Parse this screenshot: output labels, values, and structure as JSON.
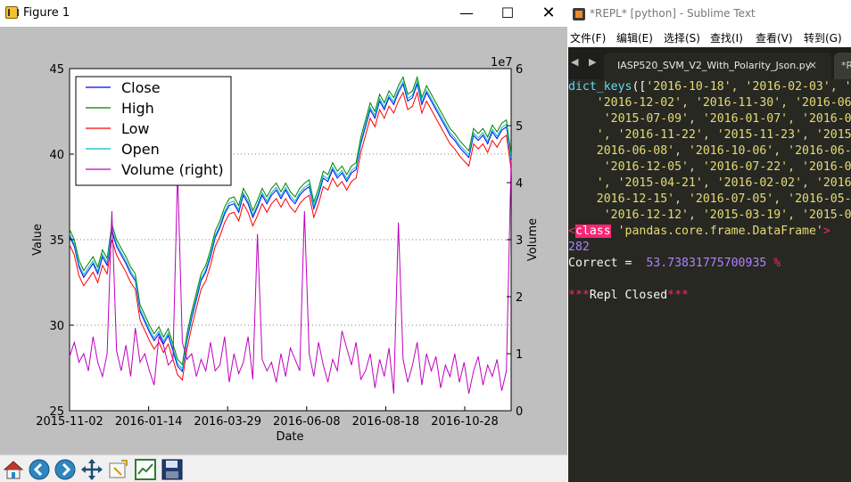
{
  "figure_window": {
    "title": "Figure 1",
    "minimize": "—",
    "maximize": "☐",
    "close": "✕",
    "toolbar": [
      "home-icon",
      "back-icon",
      "forward-icon",
      "pan-icon",
      "zoom-icon",
      "subplots-icon",
      "save-icon"
    ]
  },
  "chart_data": {
    "type": "line",
    "xlabel": "Date",
    "ylabel": "Value",
    "y2label": "Volume",
    "y2_exponent": "1e7",
    "xtick_labels": [
      "2015-11-02",
      "2016-01-14",
      "2016-03-29",
      "2016-06-08",
      "2016-08-18",
      "2016-10-28"
    ],
    "ylim": [
      25,
      45
    ],
    "y_ticks": [
      "25",
      "30",
      "35",
      "40",
      "45"
    ],
    "y2lim": [
      0,
      6
    ],
    "y2_ticks": [
      "0",
      "1",
      "2",
      "3",
      "4",
      "5",
      "6"
    ],
    "grid": "horizontal dotted",
    "legend_position": "upper left",
    "series": [
      {
        "name": "Close",
        "color": "#0000ff",
        "axis": "left"
      },
      {
        "name": "High",
        "color": "#008000",
        "axis": "left"
      },
      {
        "name": "Low",
        "color": "#ff0000",
        "axis": "left"
      },
      {
        "name": "Open",
        "color": "#00bfbf",
        "axis": "left"
      },
      {
        "name": "Volume (right)",
        "color": "#bf00bf",
        "axis": "right"
      }
    ],
    "price_close": [
      35.2,
      34.6,
      33.4,
      32.8,
      33.2,
      33.6,
      33.0,
      34.0,
      33.5,
      35.5,
      34.6,
      34.1,
      33.6,
      33.0,
      32.6,
      30.8,
      30.2,
      29.6,
      29.1,
      29.5,
      28.9,
      29.4,
      28.5,
      27.6,
      27.3,
      29.1,
      30.4,
      31.5,
      32.6,
      33.1,
      34.0,
      35.1,
      35.7,
      36.5,
      37.0,
      37.1,
      36.6,
      37.6,
      37.1,
      36.3,
      36.9,
      37.6,
      37.1,
      37.6,
      37.9,
      37.4,
      37.9,
      37.4,
      37.1,
      37.6,
      37.9,
      38.1,
      36.8,
      37.6,
      38.6,
      38.4,
      39.1,
      38.6,
      38.9,
      38.4,
      38.9,
      39.1,
      40.6,
      41.6,
      42.6,
      42.1,
      43.1,
      42.6,
      43.3,
      42.9,
      43.6,
      44.1,
      43.1,
      43.3,
      44.1,
      42.9,
      43.6,
      43.1,
      42.6,
      42.1,
      41.6,
      41.1,
      40.8,
      40.4,
      40.1,
      39.8,
      41.1,
      40.8,
      41.1,
      40.6,
      41.3,
      40.9,
      41.4,
      41.6,
      39.6
    ],
    "volume": [
      0.95,
      1.2,
      0.85,
      1.0,
      0.7,
      1.3,
      0.85,
      0.6,
      1.0,
      3.5,
      1.05,
      0.7,
      1.15,
      0.6,
      1.45,
      0.85,
      1.0,
      0.7,
      0.45,
      1.3,
      1.15,
      0.8,
      0.9,
      4.2,
      1.2,
      0.9,
      1.0,
      0.6,
      0.9,
      0.7,
      1.2,
      0.7,
      0.8,
      1.3,
      0.5,
      1.0,
      0.65,
      0.85,
      1.3,
      0.55,
      3.1,
      0.9,
      0.7,
      0.85,
      0.5,
      1.0,
      0.6,
      1.1,
      0.9,
      0.7,
      3.5,
      1.0,
      0.6,
      1.2,
      0.8,
      0.5,
      0.9,
      0.7,
      1.4,
      1.1,
      0.8,
      1.2,
      0.55,
      0.7,
      1.0,
      0.4,
      0.9,
      0.6,
      1.1,
      0.3,
      3.3,
      0.9,
      0.5,
      0.8,
      1.2,
      0.45,
      1.0,
      0.7,
      0.95,
      0.4,
      0.8,
      0.6,
      1.0,
      0.5,
      0.85,
      0.3,
      0.7,
      0.95,
      0.45,
      0.8,
      0.6,
      0.9,
      0.35,
      0.7,
      4.4
    ]
  },
  "sublime_window": {
    "title": "*REPL* [python] - Sublime Text",
    "menu": [
      "文件(F)",
      "编辑(E)",
      "选择(S)",
      "查找(I)",
      "查看(V)",
      "转到(G)"
    ],
    "tab_nav": "◀ ▶",
    "active_tab": "IASP520_SVM_V2_With_Polarity_Json.py",
    "active_tab_close": "×",
    "next_tab": "*R",
    "code": {
      "line1_fn": "dict_keys",
      "line1_rest": "([",
      "line1_str": "'2016-10-18', '2016-02-03', '",
      "line2": "    '2016-12-02', '2016-11-30', '2016-06-",
      "line3": "     '2015-07-09', '2016-01-07', '2016-0",
      "line4": "    ', '2016-11-22', '2015-11-23', '2015",
      "line5": "    2016-06-08', '2016-10-06', '2016-06-",
      "line6": "     '2016-12-05', '2016-07-22', '2016-0",
      "line7": "    ', '2015-04-21', '2016-02-02', '2016",
      "line8": "    2016-12-15', '2016-07-05', '2016-05-",
      "line9": "     '2016-12-12', '2015-03-19', '2015-0",
      "class_lt": "<",
      "class_kw": "class",
      "class_str": " 'pandas.core.frame.DataFrame'",
      "class_gt": ">",
      "count": "282",
      "correct_label": "Correct = ",
      "correct_value": " 53.73831775700935 ",
      "correct_pct": "%",
      "repl_closed_pre": "***",
      "repl_closed": "Repl Closed",
      "repl_closed_post": "***"
    }
  }
}
